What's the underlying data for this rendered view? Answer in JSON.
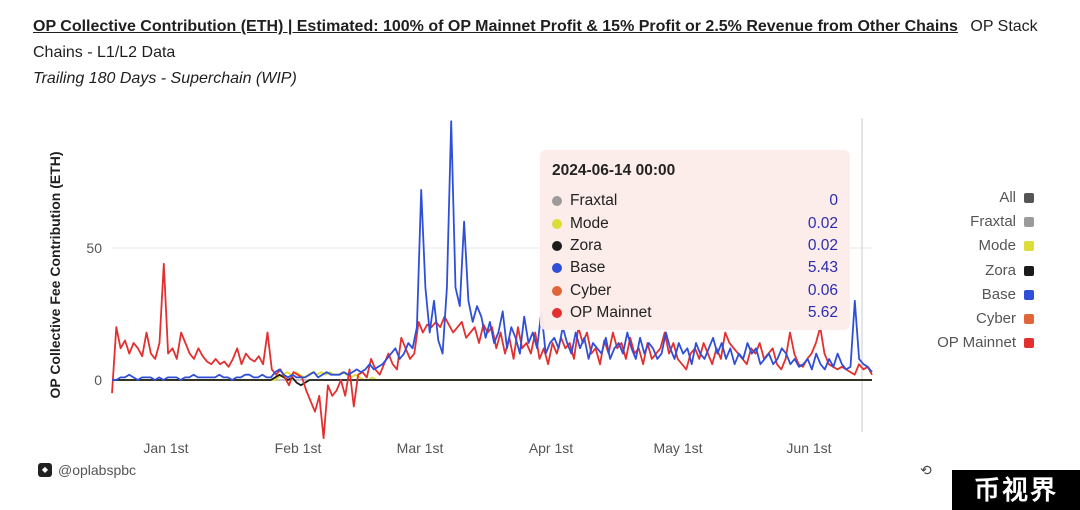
{
  "header": {
    "title": "OP Collective Contribution (ETH) | Estimated: 100% of OP Mainnet Profit & 15% Profit or 2.5% Revenue from Other Chains",
    "subtitle_inline": "OP Stack Chains - L1/L2 Data",
    "subtitle2": "Trailing 180 Days - Superchain (WIP)"
  },
  "tooltip": {
    "date": "2024-06-14 00:00",
    "rows": [
      {
        "name": "Fraxtal",
        "value": "0",
        "color": "#9b9b9b"
      },
      {
        "name": "Mode",
        "value": "0.02",
        "color": "#dddd3a"
      },
      {
        "name": "Zora",
        "value": "0.02",
        "color": "#1b1b1b"
      },
      {
        "name": "Base",
        "value": "5.43",
        "color": "#2f4fd9"
      },
      {
        "name": "Cyber",
        "value": "0.06",
        "color": "#e0663a"
      },
      {
        "name": "OP Mainnet",
        "value": "5.62",
        "color": "#e3302f"
      }
    ]
  },
  "legend": [
    {
      "name": "All",
      "color": "#555555"
    },
    {
      "name": "Fraxtal",
      "color": "#9b9b9b"
    },
    {
      "name": "Mode",
      "color": "#dddd3a"
    },
    {
      "name": "Zora",
      "color": "#1b1b1b"
    },
    {
      "name": "Base",
      "color": "#2f4fd9"
    },
    {
      "name": "Cyber",
      "color": "#e0663a"
    },
    {
      "name": "OP Mainnet",
      "color": "#e3302f"
    }
  ],
  "footer": {
    "handle": "@oplabspbc"
  },
  "watermark": "币视界",
  "chart_data": {
    "type": "line",
    "ylabel": "OP Collective Fee Contribution (ETH)",
    "ylim": [
      -20,
      100
    ],
    "yticks": [
      0,
      50
    ],
    "xticks": [
      "Jan 1st",
      "Feb 1st",
      "Mar 1st",
      "Apr 1st",
      "May 1st",
      "Jun 1st"
    ],
    "grid": true,
    "legend": "right",
    "series": [
      {
        "name": "OP Mainnet",
        "color": "#e3302f",
        "values": [
          -5,
          20,
          12,
          15,
          10,
          14,
          12,
          9,
          18,
          10,
          8,
          14,
          44,
          10,
          12,
          8,
          18,
          14,
          10,
          8,
          12,
          9,
          7,
          6,
          8,
          6,
          7,
          5,
          8,
          12,
          6,
          10,
          8,
          7,
          9,
          6,
          18,
          4,
          2,
          4,
          1,
          -2,
          3,
          2,
          1,
          -4,
          -8,
          -12,
          -6,
          -22,
          -2,
          -6,
          -4,
          0,
          -6,
          4,
          -10,
          2,
          3,
          1,
          8,
          4,
          2,
          6,
          10,
          6,
          4,
          16,
          12,
          8,
          10,
          22,
          18,
          21,
          20,
          22,
          20,
          24,
          21,
          18,
          20,
          22,
          16,
          18,
          20,
          14,
          21,
          18,
          20,
          12,
          18,
          10,
          16,
          8,
          20,
          12,
          14,
          10,
          18,
          8,
          12,
          6,
          14,
          10,
          16,
          12,
          14,
          8,
          20,
          14,
          18,
          10,
          12,
          6,
          15,
          10,
          18,
          12,
          14,
          8,
          16,
          10,
          12,
          6,
          14,
          8,
          10,
          12,
          18,
          10,
          14,
          8,
          6,
          4,
          10,
          12,
          8,
          14,
          10,
          6,
          12,
          8,
          18,
          14,
          12,
          10,
          8,
          6,
          12,
          10,
          14,
          8,
          10,
          12,
          6,
          4,
          8,
          18,
          10,
          6,
          5,
          8,
          10,
          14,
          20,
          10,
          6,
          5,
          4,
          5,
          4,
          3,
          2,
          6,
          4,
          5,
          2
        ]
      },
      {
        "name": "Base",
        "color": "#2f4fd9",
        "values": [
          0,
          0,
          1,
          1,
          2,
          1,
          0,
          1,
          1,
          1,
          0,
          1,
          0,
          1,
          1,
          1,
          0,
          1,
          1,
          2,
          1,
          1,
          1,
          1,
          1,
          2,
          1,
          1,
          0,
          1,
          1,
          2,
          2,
          1,
          1,
          2,
          1,
          1,
          3,
          4,
          2,
          1,
          2,
          1,
          1,
          1,
          2,
          3,
          1,
          2,
          3,
          2,
          2,
          2,
          3,
          2,
          3,
          4,
          3,
          4,
          6,
          4,
          5,
          6,
          8,
          10,
          12,
          8,
          10,
          14,
          12,
          20,
          72,
          35,
          18,
          30,
          15,
          10,
          35,
          98,
          35,
          28,
          60,
          30,
          22,
          28,
          24,
          16,
          22,
          14,
          18,
          26,
          12,
          20,
          16,
          10,
          24,
          14,
          18,
          12,
          26,
          10,
          14,
          16,
          12,
          20,
          14,
          10,
          18,
          12,
          16,
          8,
          14,
          12,
          10,
          16,
          8,
          12,
          14,
          10,
          18,
          12,
          8,
          16,
          10,
          14,
          12,
          8,
          10,
          18,
          12,
          8,
          14,
          10,
          12,
          6,
          14,
          10,
          8,
          12,
          16,
          10,
          14,
          8,
          12,
          6,
          10,
          8,
          14,
          10,
          12,
          6,
          8,
          10,
          6,
          8,
          12,
          10,
          6,
          8,
          5,
          6,
          8,
          4,
          10,
          6,
          4,
          8,
          5,
          10,
          6,
          4,
          5,
          30,
          8,
          6,
          5,
          3
        ]
      },
      {
        "name": "Zora",
        "color": "#1b1b1b",
        "values": [
          0,
          0,
          0,
          0,
          0,
          0,
          0,
          0,
          0,
          0,
          0,
          0,
          0,
          0,
          0,
          0,
          0,
          0,
          0,
          0,
          0,
          0,
          0,
          0,
          0,
          0,
          0,
          0,
          0,
          0,
          0,
          0,
          0,
          0,
          0,
          0,
          0,
          0,
          1,
          2,
          1,
          0,
          1,
          -1,
          -2,
          -1,
          0,
          0,
          0,
          0,
          0,
          0,
          0,
          0,
          0,
          0,
          0,
          0,
          0,
          0,
          0,
          0,
          0,
          0,
          0,
          0,
          0,
          0,
          0,
          0,
          0,
          0,
          0,
          0,
          0,
          0,
          0,
          0,
          0,
          0,
          0,
          0,
          0,
          0,
          0,
          0,
          0,
          0,
          0,
          0,
          0,
          0,
          0,
          0,
          0,
          0,
          0,
          0,
          0,
          0,
          0,
          0,
          0,
          0,
          0,
          0,
          0,
          0,
          0,
          0,
          0,
          0,
          0,
          0,
          0,
          0,
          0,
          0,
          0,
          0,
          0,
          0,
          0,
          0,
          0,
          0,
          0,
          0,
          0,
          0,
          0,
          0,
          0,
          0,
          0,
          0,
          0,
          0,
          0,
          0,
          0,
          0,
          0,
          0,
          0,
          0,
          0,
          0,
          0,
          0,
          0,
          0,
          0,
          0,
          0,
          0,
          0,
          0,
          0,
          0,
          0,
          0,
          0,
          0,
          0,
          0,
          0,
          0,
          0,
          0,
          0,
          0,
          0,
          0,
          0,
          0,
          0,
          0
        ]
      },
      {
        "name": "Mode",
        "color": "#dddd3a",
        "values": [
          0,
          0,
          0,
          0,
          0,
          0,
          0,
          0,
          0,
          0,
          0,
          0,
          0,
          0,
          0,
          0,
          0,
          0,
          0,
          0,
          0,
          0,
          0,
          0,
          0,
          0,
          0,
          0,
          0,
          0,
          0,
          0,
          0,
          0,
          0,
          0,
          0,
          0,
          0,
          1,
          2,
          3,
          2,
          3,
          2,
          1,
          2,
          3,
          2,
          3,
          2,
          3,
          2,
          2,
          3,
          2,
          1,
          2,
          1,
          0,
          0,
          1,
          0,
          0,
          0,
          0,
          0,
          0,
          0,
          0,
          0,
          0,
          0,
          0,
          0,
          0,
          0,
          0,
          0,
          0,
          0,
          0,
          0,
          0,
          0,
          0,
          0,
          0,
          0,
          0,
          0,
          0,
          0,
          0,
          0,
          0,
          0,
          0,
          0,
          0,
          0,
          0,
          0,
          0,
          0,
          0,
          0,
          0,
          0,
          0,
          0,
          0,
          0,
          0,
          0,
          0,
          0,
          0,
          0,
          0,
          0,
          0,
          0,
          0,
          0,
          0,
          0,
          0,
          0,
          0,
          0,
          0,
          0,
          0,
          0,
          0,
          0,
          0,
          0,
          0,
          0,
          0,
          0,
          0,
          0,
          0,
          0,
          0,
          0,
          0,
          0,
          0,
          0,
          0,
          0,
          0,
          0,
          0,
          0,
          0,
          0,
          0,
          0,
          0,
          0,
          0,
          0,
          0,
          0,
          0,
          0,
          0,
          0,
          0,
          0,
          0,
          0,
          0,
          0
        ]
      }
    ]
  }
}
